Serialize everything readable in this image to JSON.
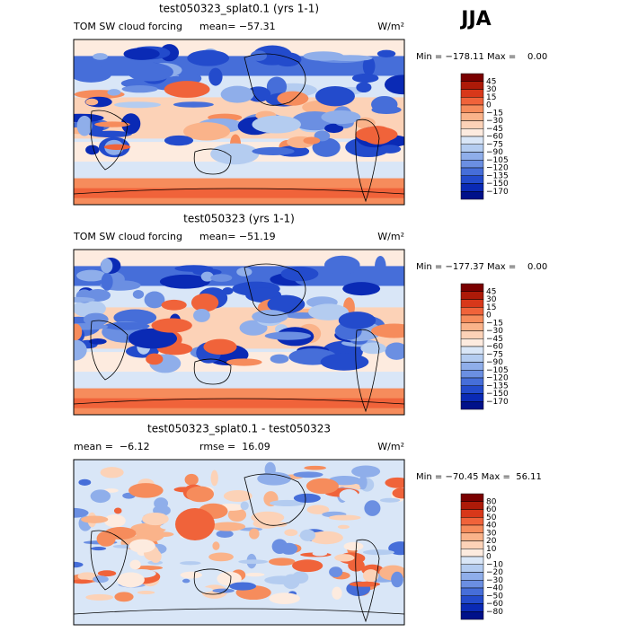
{
  "header": {
    "season": "JJA"
  },
  "panels": [
    {
      "title": "test050323_splat0.1 (yrs 1-1)",
      "label_left": "TOM SW cloud forcing",
      "label_mid": "mean= −57.31",
      "units": "W/m²",
      "minmax": "Min = −178.11 Max =    0.00",
      "colorbar": {
        "labels": [
          "45",
          "30",
          "15",
          "0",
          "−15",
          "−30",
          "−45",
          "−60",
          "−75",
          "−90",
          "−105",
          "−120",
          "−135",
          "−150",
          "−170"
        ],
        "colors": [
          "#7a0000",
          "#ad1a08",
          "#d8381a",
          "#f0633a",
          "#f68c5c",
          "#fab38a",
          "#fcd2b7",
          "#fdebdf",
          "#d9e6f7",
          "#b4ccf0",
          "#8faeea",
          "#6b8fe2",
          "#466ed9",
          "#234bcc",
          "#0a2ab5",
          "#00118a"
        ]
      }
    },
    {
      "title": "test050323 (yrs 1-1)",
      "label_left": "TOM SW cloud forcing",
      "label_mid": "mean= −51.19",
      "units": "W/m²",
      "minmax": "Min = −177.37 Max =    0.00",
      "colorbar": {
        "labels": [
          "45",
          "30",
          "15",
          "0",
          "−15",
          "−30",
          "−45",
          "−60",
          "−75",
          "−90",
          "−105",
          "−120",
          "−135",
          "−150",
          "−170"
        ],
        "colors": [
          "#7a0000",
          "#ad1a08",
          "#d8381a",
          "#f0633a",
          "#f68c5c",
          "#fab38a",
          "#fcd2b7",
          "#fdebdf",
          "#d9e6f7",
          "#b4ccf0",
          "#8faeea",
          "#6b8fe2",
          "#466ed9",
          "#234bcc",
          "#0a2ab5",
          "#00118a"
        ]
      }
    },
    {
      "title": "test050323_splat0.1 - test050323",
      "label_left": "mean =  −6.12",
      "label_mid": "rmse =  16.09",
      "units": "W/m²",
      "minmax": "Min = −70.45 Max =  56.11",
      "colorbar": {
        "labels": [
          "80",
          "60",
          "50",
          "40",
          "30",
          "20",
          "10",
          "0",
          "−10",
          "−20",
          "−30",
          "−40",
          "−50",
          "−60",
          "−80"
        ],
        "colors": [
          "#7a0000",
          "#ad1a08",
          "#d8381a",
          "#f0633a",
          "#f68c5c",
          "#fab38a",
          "#fcd2b7",
          "#fdebdf",
          "#d9e6f7",
          "#b4ccf0",
          "#8faeea",
          "#6b8fe2",
          "#466ed9",
          "#234bcc",
          "#0a2ab5",
          "#00118a"
        ]
      }
    }
  ]
}
